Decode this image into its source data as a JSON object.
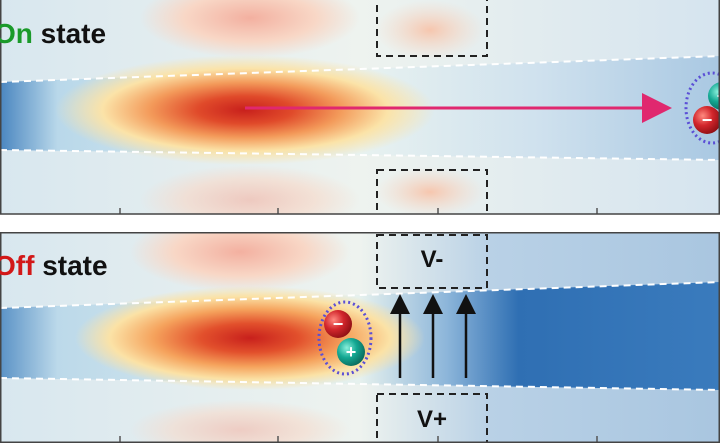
{
  "top_panel": {
    "state_word": "On",
    "state_suffix": " state",
    "state_word_color": "#1a9a2a"
  },
  "bottom_panel": {
    "state_word": "Off",
    "state_suffix": " state",
    "state_word_color": "#d21818",
    "gate_top_label": "V-",
    "gate_bottom_label": "V+"
  },
  "charges": {
    "negative_symbol": "−",
    "positive_symbol": "+"
  },
  "colors": {
    "flow_arrow": "#e0286f",
    "field_arrow": "#111111",
    "pair_outline": "#5b4fd6",
    "negative_charge": "#c8202a",
    "positive_charge": "#10a090"
  }
}
